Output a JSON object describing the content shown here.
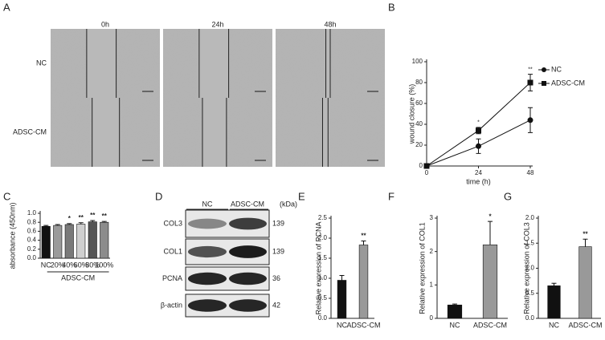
{
  "micrographs": {
    "panel": "A",
    "columns": [
      "0h",
      "24h",
      "48h"
    ],
    "rows": [
      "NC",
      "ADSC-CM"
    ]
  },
  "blot": {
    "panel": "D",
    "columns": [
      "NC",
      "ADSC-CM",
      "(kDa)"
    ],
    "bands": [
      {
        "label": "COL3",
        "kda": 139
      },
      {
        "label": "COL1",
        "kda": 139
      },
      {
        "label": "PCNA",
        "kda": 36
      },
      {
        "label": "β-actin",
        "kda": 42
      }
    ]
  },
  "chart_data": [
    {
      "type": "line",
      "panel": "B",
      "x_label": "time (h)",
      "y_label": "wound closure (%)",
      "x": [
        0,
        24,
        48
      ],
      "xlim": [
        0,
        48
      ],
      "xticks": [
        0,
        24,
        48
      ],
      "ylim": [
        0,
        100
      ],
      "yticks": [
        0,
        20,
        40,
        60,
        80,
        100
      ],
      "series": [
        {
          "name": "NC",
          "color": "#111111",
          "marker": "circle",
          "values": [
            0,
            19,
            44
          ],
          "errors": [
            0,
            7,
            12
          ]
        },
        {
          "name": "ADSC-CM",
          "color": "#111111",
          "marker": "square",
          "values": [
            0,
            34,
            80
          ],
          "errors": [
            0,
            3,
            8
          ]
        }
      ],
      "sig": [
        null,
        "*",
        "**"
      ],
      "legend": "right"
    },
    {
      "type": "bar",
      "panel": "C",
      "y_label": "absorbance (450nm)",
      "categories": [
        "NC",
        "20%",
        "40%",
        "60%",
        "80%",
        "100%"
      ],
      "group_label": "ADSC-CM",
      "values": [
        0.71,
        0.73,
        0.75,
        0.76,
        0.81,
        0.8
      ],
      "errors": [
        0.02,
        0.02,
        0.02,
        0.03,
        0.03,
        0.02
      ],
      "colors": [
        "#111111",
        "#9a9a9a",
        "#7a7a7a",
        "#cfcfcf",
        "#555555",
        "#8c8c8c"
      ],
      "sig": [
        null,
        null,
        "*",
        "**",
        "**",
        "**"
      ],
      "ylim": [
        0,
        1
      ],
      "yticks": [
        {
          "value": 0,
          "label": "0.0"
        },
        0.2,
        0.4,
        0.6,
        0.8,
        {
          "value": 1,
          "label": "1.0"
        }
      ]
    },
    {
      "type": "bar",
      "panel": "E",
      "y_label": "Relative expression of PCNA",
      "categories": [
        "NC",
        "ADSC-CM"
      ],
      "values": [
        0.95,
        1.83
      ],
      "errors": [
        0.12,
        0.1
      ],
      "colors": [
        "#111111",
        "#999999"
      ],
      "sig": [
        null,
        "**"
      ],
      "ylim": [
        0,
        2.5
      ],
      "yticks": [
        {
          "value": 0,
          "label": "0.0"
        },
        0.5,
        {
          "value": 1,
          "label": "1.0"
        },
        1.5,
        {
          "value": 2,
          "label": "2.0"
        },
        2.5
      ]
    },
    {
      "type": "bar",
      "panel": "F",
      "y_label": "Relative expression of COL1",
      "categories": [
        "NC",
        "ADSC-CM"
      ],
      "values": [
        0.4,
        2.2
      ],
      "errors": [
        0.03,
        0.7
      ],
      "colors": [
        "#111111",
        "#999999"
      ],
      "sig": [
        null,
        "*"
      ],
      "ylim": [
        0,
        3
      ],
      "yticks": [
        0,
        1,
        2,
        3
      ]
    },
    {
      "type": "bar",
      "panel": "G",
      "y_label": "Relative expression of COL3",
      "categories": [
        "NC",
        "ADSC-CM"
      ],
      "values": [
        0.65,
        1.43
      ],
      "errors": [
        0.05,
        0.15
      ],
      "colors": [
        "#111111",
        "#999999"
      ],
      "sig": [
        null,
        "**"
      ],
      "ylim": [
        0,
        2
      ],
      "yticks": [
        {
          "value": 0,
          "label": "0.0"
        },
        0.5,
        {
          "value": 1,
          "label": "1.0"
        },
        1.5,
        {
          "value": 2,
          "label": "2.0"
        }
      ]
    }
  ]
}
